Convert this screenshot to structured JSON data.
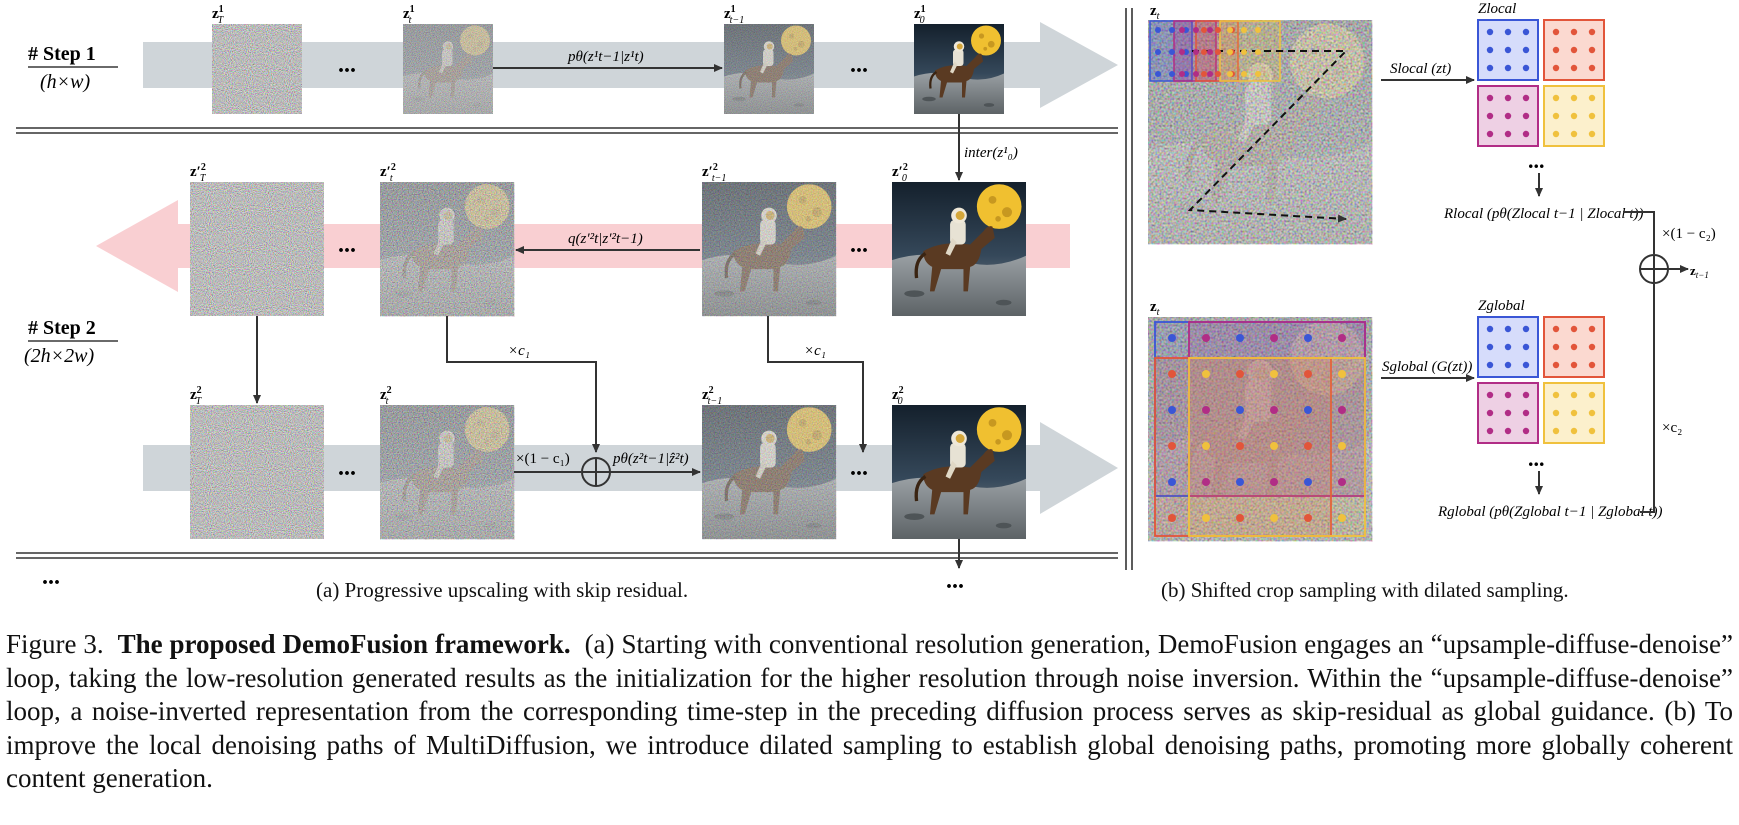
{
  "panel_a": {
    "step1": {
      "title": "# Step 1",
      "size": "(h×w)"
    },
    "step2": {
      "title": "# Step 2",
      "size": "(2h×2w)"
    },
    "row1_labels": {
      "zT": "z",
      "zT_sup": "1",
      "zT_sub": "T",
      "zt": "z",
      "zt_sup": "1",
      "zt_sub": "t",
      "zt1": "z",
      "zt1_sup": "1",
      "zt1_sub": "t−1",
      "z0": "z",
      "z0_sup": "1",
      "z0_sub": "0"
    },
    "row2_labels": {
      "zT": "z′",
      "zT_sup": "2",
      "zT_sub": "T",
      "zt": "z′",
      "zt_sup": "2",
      "zt_sub": "t",
      "zt1": "z′",
      "zt1_sup": "2",
      "zt1_sub": "t−1",
      "z0": "z′",
      "z0_sup": "2",
      "z0_sub": "0"
    },
    "row3_labels": {
      "zT": "z",
      "zT_sup": "2",
      "zT_sub": "T",
      "zt": "z",
      "zt_sup": "2",
      "zt_sub": "t",
      "zt1": "z",
      "zt1_sup": "2",
      "zt1_sub": "t−1",
      "z0": "z",
      "z0_sup": "2",
      "z0_sub": "0"
    },
    "ellipsis": "...",
    "p_theta_row1": "pθ(z¹t−1|z¹t)",
    "inter": "inter(z¹₀)",
    "q_row2": "q(z′²t|z′²t−1)",
    "times_c1": "×c₁",
    "one_minus_c1": "×(1 − c₁)",
    "p_theta_row3": "pθ(z²t−1|ẑ²t)",
    "subcaption": "(a) Progressive upscaling with skip residual."
  },
  "panel_b": {
    "zt_label": "z",
    "zt_sub": "t",
    "s_local": "Slocal (zt)",
    "s_global": "Sglobal (G(zt))",
    "z_local": "Zlocal",
    "z_global": "Zglobal",
    "r_local": "Rlocal (pθ(Zlocal t−1 | Zlocal t))",
    "r_global": "Rglobal (pθ(Zglobal t−1 | Zglobal t))",
    "times_one_minus_c2": "×(1 − c₂)",
    "times_c2": "×c₂",
    "z_tminus1": "z",
    "z_tminus1_sub": "t−1",
    "ellipsis": "...",
    "subcaption": "(b) Shifted crop sampling with dilated sampling."
  },
  "caption": {
    "prefix": "Figure 3.",
    "title": "The proposed DemoFusion framework.",
    "body": "(a) Starting with conventional resolution generation, DemoFusion engages an “upsample-diffuse-denoise” loop, taking the low-resolution generated results as the initialization for the higher resolution through noise inversion. Within the “upsample-diffuse-denoise” loop, a noise-inverted representation from the corresponding time-step in the preceding diffusion process serves as skip-residual as global guidance. (b) To improve the local denoising paths of MultiDiffusion, we introduce dilated sampling to establish global denoising paths, promoting more globally coherent content generation."
  },
  "colors": {
    "gray_arrow": "#cfd5d9",
    "pink_arrow": "#f9cfd2",
    "blue": "#3a56d6",
    "red": "#e2553a",
    "magenta": "#b12d86",
    "yellow": "#f0c13d"
  }
}
